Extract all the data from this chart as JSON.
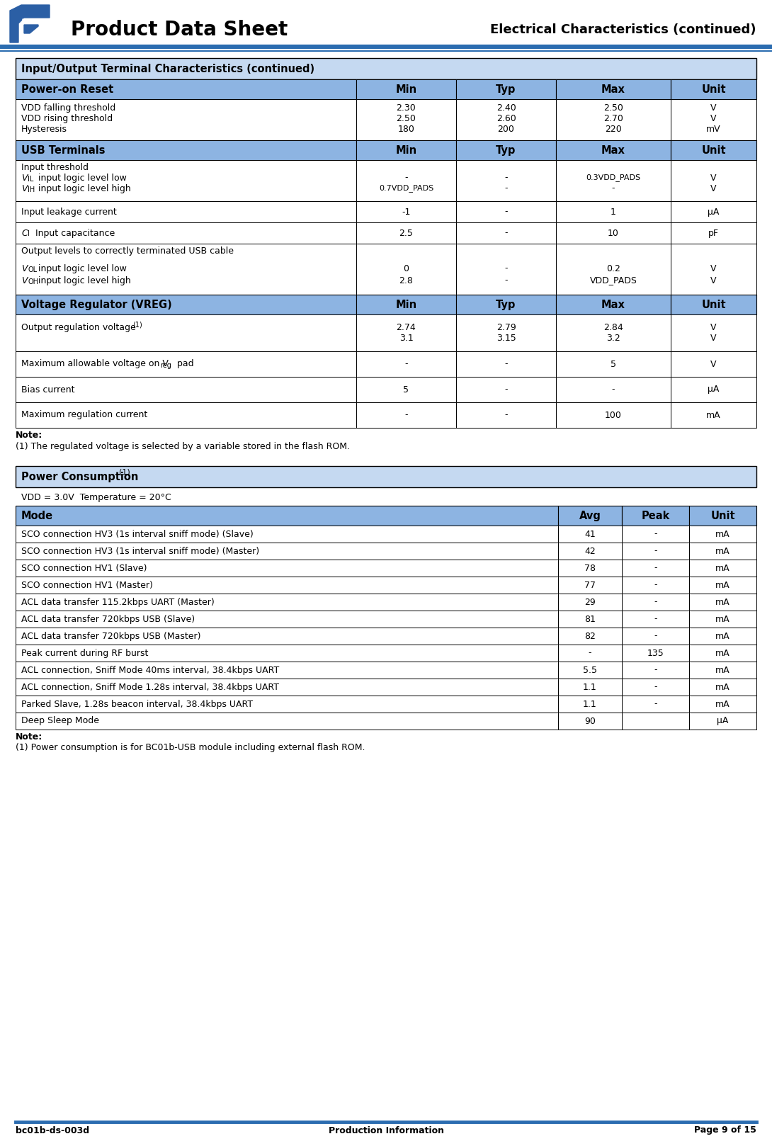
{
  "page_title": "Product Data Sheet",
  "page_subtitle": "Electrical Characteristics (continued)",
  "footer_left": "bc01b-ds-003d",
  "footer_center": "Production Information",
  "footer_right": "Page 9 of 15",
  "header_line_color": "#2b6cb0",
  "table_subheader_bg": "#c5d9f1",
  "table_colheader_bg": "#8db4e2",
  "section1_title": "Input/Output Terminal Characteristics (continued)",
  "section2_title": "Power Consumption",
  "power_subtitle": "VDD = 3.0V  Temperature = 20°C",
  "note1_bold": "Note:",
  "note1_super": "(1) ",
  "note1_detail": "The regulated voltage is selected by a variable stored in the flash ROM.",
  "note2_bold": "Note:",
  "note2_super": "(1) ",
  "note2_detail": "Power consumption is for BC01b-USB module including external flash ROM.",
  "power_table_rows": [
    [
      "SCO connection HV3 (1s interval sniff mode) (Slave)",
      "41",
      "-",
      "mA"
    ],
    [
      "SCO connection HV3 (1s interval sniff mode) (Master)",
      "42",
      "-",
      "mA"
    ],
    [
      "SCO connection HV1 (Slave)",
      "78",
      "-",
      "mA"
    ],
    [
      "SCO connection HV1 (Master)",
      "77",
      "-",
      "mA"
    ],
    [
      "ACL data transfer 115.2kbps UART (Master)",
      "29",
      "-",
      "mA"
    ],
    [
      "ACL data transfer 720kbps USB (Slave)",
      "81",
      "-",
      "mA"
    ],
    [
      "ACL data transfer 720kbps USB (Master)",
      "82",
      "-",
      "mA"
    ],
    [
      "Peak current during RF burst",
      "-",
      "135",
      "mA"
    ],
    [
      "ACL connection, Sniff Mode 40ms interval, 38.4kbps UART",
      "5.5",
      "-",
      "mA"
    ],
    [
      "ACL connection, Sniff Mode 1.28s interval, 38.4kbps UART",
      "1.1",
      "-",
      "mA"
    ],
    [
      "Parked Slave, 1.28s beacon interval, 38.4kbps UART",
      "1.1",
      "-",
      "mA"
    ],
    [
      "Deep Sleep Mode",
      "90",
      "",
      "μA"
    ]
  ]
}
